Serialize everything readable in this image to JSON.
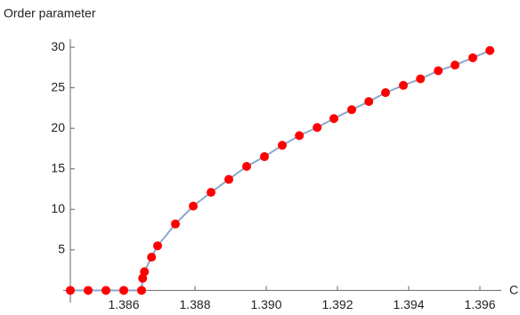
{
  "chart_data": {
    "type": "line",
    "y_label": "Order parameter",
    "x_label": "C",
    "x": [
      1.3845,
      1.385,
      1.3855,
      1.386,
      1.3865,
      1.38653,
      1.38658,
      1.38678,
      1.38695,
      1.38745,
      1.38795,
      1.38845,
      1.38895,
      1.38945,
      1.38995,
      1.39045,
      1.39093,
      1.39143,
      1.3919,
      1.3924,
      1.39288,
      1.39335,
      1.39385,
      1.39433,
      1.39483,
      1.3953,
      1.3958,
      1.39628
    ],
    "series": [
      {
        "color": "#8aa8cc",
        "marker_color": "#ff0000",
        "values": [
          0,
          0,
          0,
          0,
          0,
          1.5,
          2.3,
          4.1,
          5.5,
          8.2,
          10.4,
          12.1,
          13.7,
          15.3,
          16.5,
          17.9,
          19.1,
          20.1,
          21.2,
          22.3,
          23.3,
          24.4,
          25.3,
          26.1,
          27.1,
          27.8,
          28.7,
          29.6
        ]
      }
    ],
    "xlim": [
      1.3845,
      1.3966
    ],
    "ylim": [
      -1.5,
      31
    ],
    "xticks": [
      {
        "value": 1.386,
        "label": "1.386"
      },
      {
        "value": 1.388,
        "label": "1.388"
      },
      {
        "value": 1.39,
        "label": "1.390"
      },
      {
        "value": 1.392,
        "label": "1.392"
      },
      {
        "value": 1.394,
        "label": "1.394"
      },
      {
        "value": 1.396,
        "label": "1.396"
      }
    ],
    "yticks": [
      5,
      10,
      15,
      20,
      25,
      30
    ],
    "grid": false
  }
}
